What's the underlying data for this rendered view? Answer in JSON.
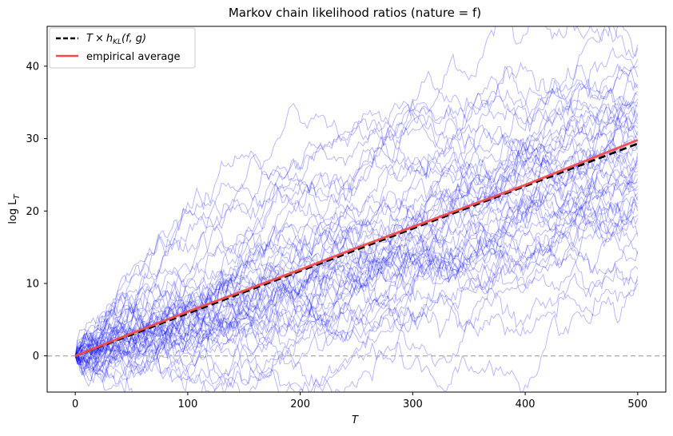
{
  "chart_data": {
    "type": "line",
    "title": "Markov chain likelihood ratios (nature = f)",
    "xlabel": "T",
    "ylabel": "log L_T",
    "xlim": [
      -25,
      525
    ],
    "ylim": [
      -5,
      45.5
    ],
    "x_ticks": [
      0,
      100,
      200,
      300,
      400,
      500
    ],
    "y_ticks": [
      0,
      10,
      20,
      30,
      40
    ],
    "grid": false,
    "legend_position": "top-left",
    "reference_line": {
      "y": 0,
      "style": "dashed",
      "color": "#b0b0b0"
    },
    "series": [
      {
        "name": "T × h_KL(f, g)",
        "color": "#000000",
        "style": "dashed",
        "x": [
          0,
          500
        ],
        "y": [
          0,
          29.3
        ]
      },
      {
        "name": "empirical average",
        "color": "#f24a4a",
        "style": "solid",
        "x": [
          0,
          50,
          100,
          150,
          200,
          250,
          300,
          350,
          400,
          450,
          500
        ],
        "y": [
          0,
          3.1,
          6.1,
          9.0,
          11.9,
          14.9,
          17.8,
          20.7,
          23.6,
          26.7,
          29.8
        ]
      }
    ],
    "simulated_paths": {
      "count": 50,
      "color": "#0000ff",
      "opacity": 0.3,
      "T_max": 500,
      "final_values": [
        43,
        42.5,
        41,
        40,
        38.5,
        37.5,
        37,
        36.5,
        36,
        35.5,
        35,
        34.5,
        33.5,
        33,
        32.5,
        32,
        31.5,
        31,
        30.5,
        30,
        29.5,
        29,
        28.5,
        28,
        27.5,
        27,
        26.5,
        26,
        25.5,
        25,
        24.5,
        24,
        23.5,
        23,
        22.5,
        22,
        21.5,
        21,
        20.5,
        20,
        19.5,
        19,
        17,
        16.5,
        14.5,
        14,
        12,
        11,
        10.5,
        10
      ]
    }
  },
  "legend": {
    "entry1_prefix": "T",
    "entry1_times": "×",
    "entry1_h": "h",
    "entry1_sub": "KL",
    "entry1_args": "(f, g)",
    "entry2_label": "empirical average"
  },
  "axes": {
    "ylabel_main": "log L",
    "ylabel_sub": "T"
  },
  "colors": {
    "paths": "#0000ff",
    "empirical": "#f24a4a",
    "theory": "#000000",
    "zero_line": "#b0b0b0"
  }
}
